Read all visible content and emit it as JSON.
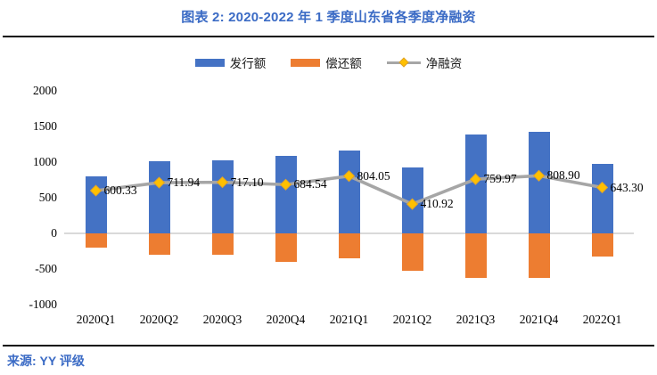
{
  "header": {
    "title": "图表 2: 2020-2022 年 1 季度山东省各季度净融资"
  },
  "source": {
    "label": "来源: YY 评级"
  },
  "colors": {
    "issuance_bar": "#4472c4",
    "repayment_bar": "#ed7d31",
    "net_line": "#a6a6a6",
    "net_marker": "#ffc000",
    "title_blue": "#3b6bc5",
    "zero_axis": "#d9d9d9"
  },
  "legend": {
    "items": [
      {
        "label": "发行额",
        "swatch": "bar-blue"
      },
      {
        "label": "偿还额",
        "swatch": "bar-orange"
      },
      {
        "label": "净融资",
        "swatch": "line-diamond"
      }
    ]
  },
  "chart_data": {
    "type": "bar",
    "subtype": "combo bar+line",
    "title": "图表 2: 2020-2022 年 1 季度山东省各季度净融资",
    "categories": [
      "2020Q1",
      "2020Q2",
      "2020Q3",
      "2020Q4",
      "2021Q1",
      "2021Q2",
      "2021Q3",
      "2021Q4",
      "2022Q1"
    ],
    "series": [
      {
        "name": "发行额",
        "type": "bar",
        "color": "#4472c4",
        "values": [
          800,
          1010,
          1020,
          1090,
          1160,
          930,
          1390,
          1430,
          975
        ]
      },
      {
        "name": "偿还额",
        "type": "bar",
        "color": "#ed7d31",
        "values": [
          -200,
          -300,
          -305,
          -405,
          -355,
          -520,
          -630,
          -620,
          -330
        ]
      },
      {
        "name": "净融资",
        "type": "line",
        "color": "#a6a6a6",
        "marker_color": "#ffc000",
        "values": [
          600.33,
          711.94,
          717.1,
          684.54,
          804.05,
          410.92,
          759.97,
          808.9,
          643.3
        ]
      }
    ],
    "data_labels": [
      "600.33",
      "711.94",
      "717.10",
      "684.54",
      "804.05",
      "410.92",
      "759.97",
      "808.90",
      "643.30"
    ],
    "xlabel": "",
    "ylabel": "",
    "y_axis": {
      "min": -1000,
      "max": 2000,
      "tick_step": 500,
      "ticks": [
        2000,
        1500,
        1000,
        500,
        0,
        -500,
        -1000
      ]
    },
    "grid": false,
    "legend_position": "top"
  }
}
